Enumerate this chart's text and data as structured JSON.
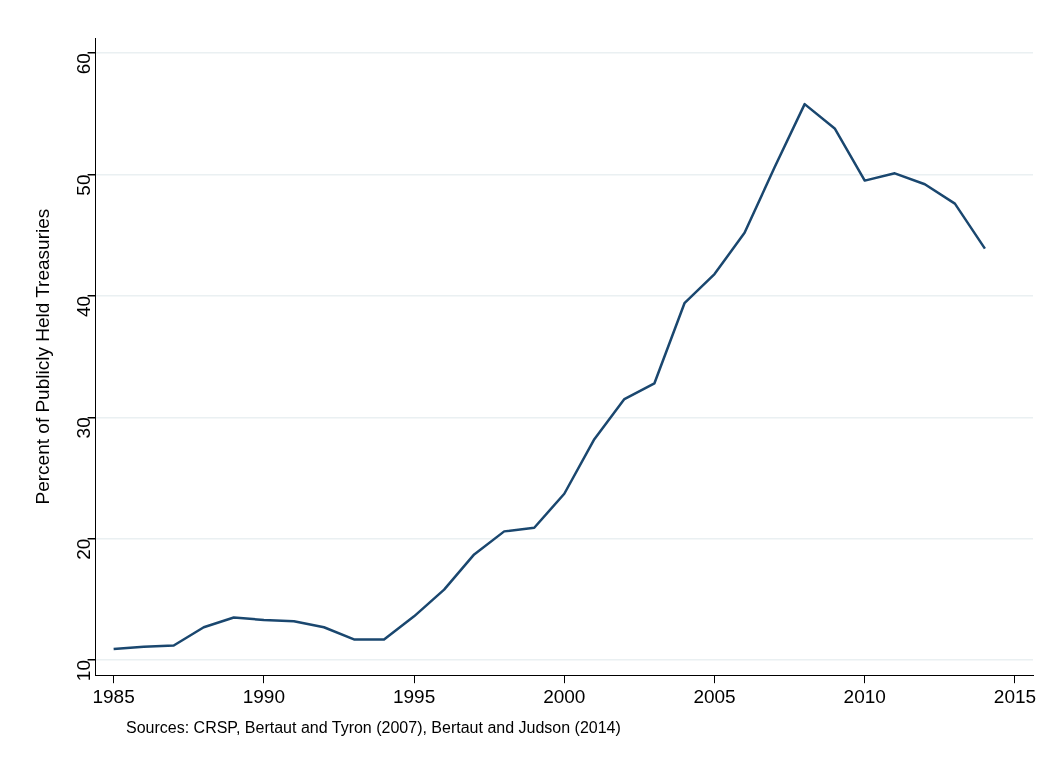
{
  "chart_data": {
    "type": "line",
    "ylabel": "Percent of Publicly Held Treasuries",
    "x": [
      1985,
      1986,
      1987,
      1988,
      1989,
      1990,
      1991,
      1992,
      1993,
      1994,
      1995,
      1996,
      1997,
      1998,
      1999,
      2000,
      2001,
      2002,
      2003,
      2004,
      2005,
      2006,
      2007,
      2008,
      2009,
      2010,
      2011,
      2012,
      2013,
      2014
    ],
    "series": [
      {
        "color": "#1a476f",
        "values": [
          10.9,
          11.1,
          11.2,
          12.7,
          13.5,
          13.3,
          13.2,
          12.7,
          11.7,
          11.7,
          13.6,
          15.8,
          18.7,
          20.6,
          20.9,
          23.7,
          28.2,
          31.5,
          32.8,
          39.4,
          41.8,
          45.2,
          50.6,
          55.8,
          53.8,
          49.5,
          50.1,
          49.2,
          47.6,
          43.9
        ]
      }
    ],
    "xlim": [
      1984.4,
      2015.6
    ],
    "xticks": [
      1985,
      1990,
      1995,
      2000,
      2005,
      2010,
      2015
    ],
    "ylim": [
      8.75,
      61.25
    ],
    "yticks": [
      10,
      20,
      30,
      40,
      50,
      60
    ],
    "grid": "y",
    "legend": false,
    "marker": "none",
    "line_style": "solid",
    "annotations": [
      "Sources: CRSP, Bertaut and Tyron (2007), Bertaut and Judson (2014)"
    ]
  }
}
